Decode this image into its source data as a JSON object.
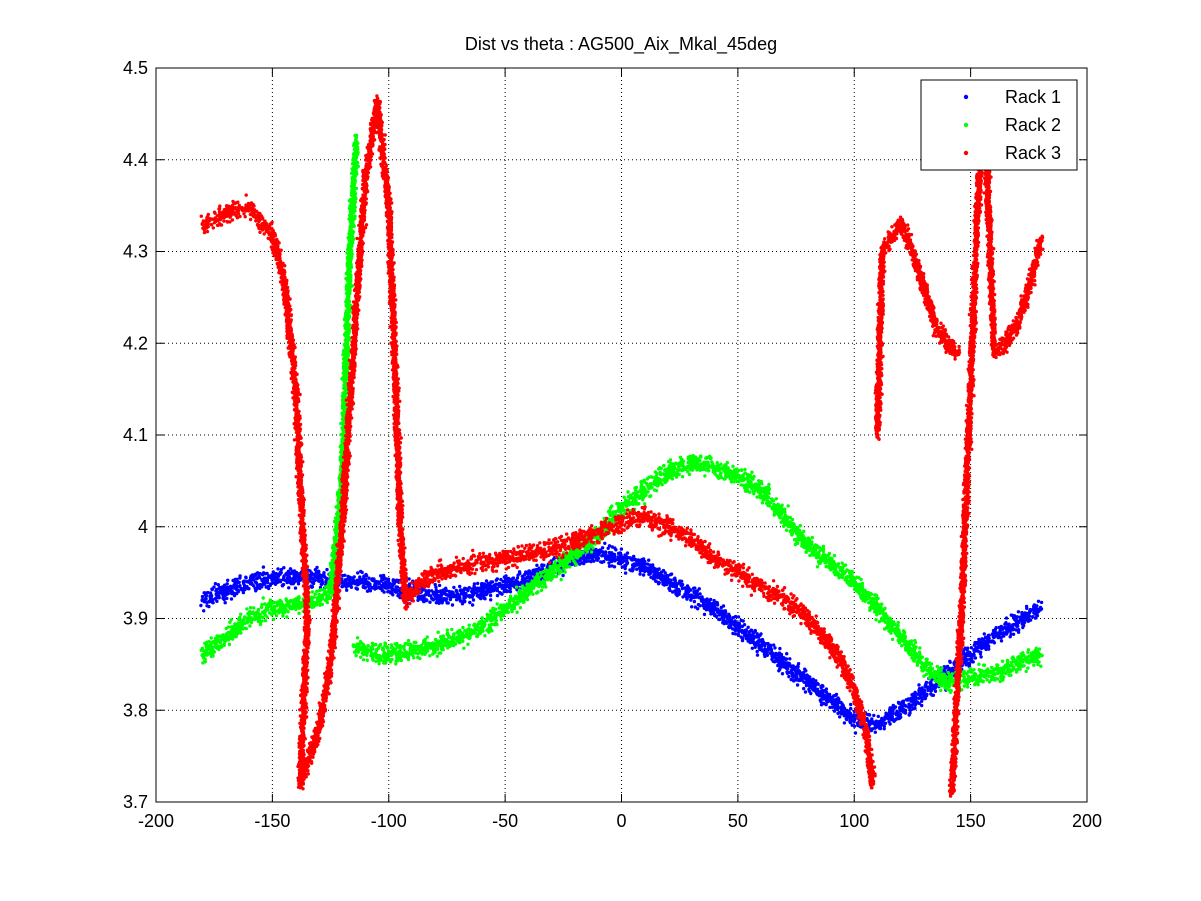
{
  "chart_data": {
    "type": "scatter",
    "title": "Dist vs theta : AG500_Aix_Mkal_45deg",
    "xlim": [
      -200,
      200
    ],
    "ylim": [
      3.7,
      4.5
    ],
    "xticks": [
      -200,
      -150,
      -100,
      -50,
      0,
      50,
      100,
      150,
      200
    ],
    "xtick_labels": [
      "-200",
      "-150",
      "-100",
      "-50",
      "0",
      "50",
      "100",
      "150",
      "200"
    ],
    "yticks": [
      3.7,
      3.8,
      3.9,
      4.0,
      4.1,
      4.2,
      4.3,
      4.4,
      4.5
    ],
    "ytick_labels": [
      "3.7",
      "3.8",
      "3.9",
      "4",
      "4.1",
      "4.2",
      "4.3",
      "4.4",
      "4.5"
    ],
    "grid": true,
    "legend_position": "top-right",
    "series": [
      {
        "name": "Rack 1",
        "color": "#0000ff",
        "points": [
          [
            -180,
            3.92
          ],
          [
            -170,
            3.93
          ],
          [
            -160,
            3.94
          ],
          [
            -150,
            3.945
          ],
          [
            -140,
            3.945
          ],
          [
            -130,
            3.945
          ],
          [
            -120,
            3.94
          ],
          [
            -110,
            3.94
          ],
          [
            -100,
            3.935
          ],
          [
            -90,
            3.93
          ],
          [
            -80,
            3.925
          ],
          [
            -70,
            3.925
          ],
          [
            -60,
            3.93
          ],
          [
            -50,
            3.935
          ],
          [
            -40,
            3.945
          ],
          [
            -30,
            3.955
          ],
          [
            -20,
            3.965
          ],
          [
            -10,
            3.97
          ],
          [
            0,
            3.965
          ],
          [
            10,
            3.955
          ],
          [
            20,
            3.94
          ],
          [
            30,
            3.925
          ],
          [
            40,
            3.91
          ],
          [
            50,
            3.89
          ],
          [
            60,
            3.87
          ],
          [
            70,
            3.85
          ],
          [
            80,
            3.83
          ],
          [
            90,
            3.81
          ],
          [
            100,
            3.79
          ],
          [
            110,
            3.785
          ],
          [
            120,
            3.8
          ],
          [
            130,
            3.82
          ],
          [
            140,
            3.84
          ],
          [
            150,
            3.86
          ],
          [
            160,
            3.88
          ],
          [
            170,
            3.895
          ],
          [
            180,
            3.91
          ]
        ]
      },
      {
        "name": "Rack 2",
        "color": "#00ff00",
        "points": [
          [
            -180,
            3.86
          ],
          [
            -170,
            3.88
          ],
          [
            -160,
            3.9
          ],
          [
            -150,
            3.91
          ],
          [
            -140,
            3.915
          ],
          [
            -130,
            3.92
          ],
          [
            -125,
            3.93
          ],
          [
            -120,
            4.05
          ],
          [
            -117,
            4.28
          ],
          [
            -114,
            4.42
          ],
          [
            -115,
            3.87
          ],
          [
            -110,
            3.865
          ],
          [
            -100,
            3.86
          ],
          [
            -90,
            3.865
          ],
          [
            -80,
            3.87
          ],
          [
            -70,
            3.88
          ],
          [
            -60,
            3.89
          ],
          [
            -50,
            3.91
          ],
          [
            -40,
            3.93
          ],
          [
            -30,
            3.95
          ],
          [
            -20,
            3.97
          ],
          [
            -10,
            3.99
          ],
          [
            0,
            4.02
          ],
          [
            10,
            4.04
          ],
          [
            20,
            4.06
          ],
          [
            30,
            4.07
          ],
          [
            40,
            4.065
          ],
          [
            50,
            4.055
          ],
          [
            60,
            4.04
          ],
          [
            70,
            4.01
          ],
          [
            80,
            3.98
          ],
          [
            90,
            3.96
          ],
          [
            100,
            3.94
          ],
          [
            110,
            3.91
          ],
          [
            120,
            3.88
          ],
          [
            130,
            3.85
          ],
          [
            140,
            3.83
          ],
          [
            150,
            3.835
          ],
          [
            160,
            3.84
          ],
          [
            170,
            3.85
          ],
          [
            180,
            3.86
          ]
        ]
      },
      {
        "name": "Rack 3",
        "color": "#ff0000",
        "points": [
          [
            -180,
            4.33
          ],
          [
            -170,
            4.34
          ],
          [
            -160,
            4.35
          ],
          [
            -150,
            4.32
          ],
          [
            -145,
            4.27
          ],
          [
            -140,
            4.15
          ],
          [
            -135,
            3.9
          ],
          [
            -138,
            3.72
          ],
          [
            -130,
            3.78
          ],
          [
            -125,
            3.85
          ],
          [
            -120,
            4.0
          ],
          [
            -115,
            4.2
          ],
          [
            -110,
            4.38
          ],
          [
            -105,
            4.46
          ],
          [
            -100,
            4.35
          ],
          [
            -97,
            4.15
          ],
          [
            -95,
            4.0
          ],
          [
            -93,
            3.92
          ],
          [
            -85,
            3.94
          ],
          [
            -80,
            3.95
          ],
          [
            -70,
            3.955
          ],
          [
            -60,
            3.96
          ],
          [
            -50,
            3.965
          ],
          [
            -40,
            3.97
          ],
          [
            -30,
            3.975
          ],
          [
            -20,
            3.985
          ],
          [
            -10,
            3.995
          ],
          [
            0,
            4.005
          ],
          [
            10,
            4.01
          ],
          [
            20,
            4.0
          ],
          [
            30,
            3.985
          ],
          [
            40,
            3.965
          ],
          [
            50,
            3.95
          ],
          [
            60,
            3.935
          ],
          [
            70,
            3.92
          ],
          [
            80,
            3.9
          ],
          [
            90,
            3.87
          ],
          [
            95,
            3.85
          ],
          [
            100,
            3.82
          ],
          [
            105,
            3.78
          ],
          [
            108,
            3.72
          ],
          [
            110,
            4.1
          ],
          [
            112,
            4.3
          ],
          [
            120,
            4.33
          ],
          [
            125,
            4.3
          ],
          [
            130,
            4.26
          ],
          [
            135,
            4.22
          ],
          [
            140,
            4.2
          ],
          [
            145,
            4.19
          ],
          [
            142,
            3.71
          ],
          [
            146,
            3.9
          ],
          [
            150,
            4.15
          ],
          [
            153,
            4.35
          ],
          [
            156,
            4.47
          ],
          [
            160,
            4.19
          ],
          [
            165,
            4.2
          ],
          [
            170,
            4.22
          ],
          [
            175,
            4.26
          ],
          [
            180,
            4.31
          ]
        ]
      }
    ]
  }
}
